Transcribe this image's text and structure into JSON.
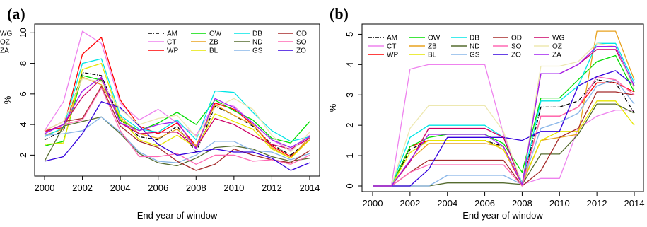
{
  "chart_data": [
    {
      "panel": "(a)",
      "type": "line",
      "xlabel": "End year of window",
      "ylabel": "%",
      "xlim": [
        2000,
        2014
      ],
      "ylim": [
        1,
        10.2
      ],
      "x_ticks": [
        "2000",
        "2002",
        "2004",
        "2006",
        "2008",
        "2010",
        "2012",
        "2014"
      ],
      "y_ticks": [
        "2",
        "4",
        "6",
        "8",
        "10"
      ],
      "legend_position": "top-right",
      "x": [
        2000,
        2001,
        2002,
        2003,
        2004,
        2005,
        2006,
        2007,
        2008,
        2009,
        2010,
        2011,
        2012,
        2013,
        2014
      ],
      "series": [
        {
          "name": "AM",
          "color": "#000000",
          "dash": "5,2,1,2",
          "values": [
            3.0,
            3.6,
            7.4,
            7.2,
            4.3,
            3.2,
            3.0,
            3.9,
            2.2,
            5.2,
            4.6,
            3.9,
            2.7,
            2.0,
            3.0
          ]
        },
        {
          "name": "CT",
          "color": "#ee82ee",
          "values": [
            3.6,
            5.5,
            10.1,
            9.3,
            5.4,
            4.3,
            5.0,
            4.1,
            3.3,
            5.4,
            5.2,
            4.1,
            3.0,
            2.3,
            3.3
          ]
        },
        {
          "name": "WP",
          "color": "#ff0000",
          "values": [
            3.6,
            3.8,
            8.6,
            9.7,
            5.6,
            3.9,
            3.4,
            4.1,
            2.6,
            5.4,
            5.0,
            4.0,
            2.6,
            1.9,
            3.0
          ]
        },
        {
          "name": "OW",
          "color": "#00dd00",
          "values": [
            2.6,
            2.9,
            7.2,
            6.9,
            4.3,
            3.6,
            4.1,
            4.8,
            4.0,
            5.6,
            4.9,
            4.3,
            3.1,
            2.8,
            4.2
          ]
        },
        {
          "name": "ZB",
          "color": "#e8a21e",
          "values": [
            3.3,
            3.7,
            7.1,
            6.6,
            4.5,
            3.4,
            3.1,
            3.7,
            2.6,
            5.3,
            4.6,
            4.0,
            2.5,
            1.8,
            3.2
          ]
        },
        {
          "name": "BL",
          "color": "#e6e600",
          "values": [
            2.7,
            2.8,
            7.6,
            8.0,
            4.4,
            3.0,
            2.6,
            3.3,
            2.5,
            4.7,
            4.2,
            3.7,
            2.4,
            1.8,
            3.0
          ]
        },
        {
          "name": "DB",
          "color": "#00e5e5",
          "values": [
            3.2,
            3.8,
            8.0,
            8.3,
            4.6,
            3.7,
            3.5,
            4.3,
            3.0,
            6.2,
            6.1,
            4.8,
            3.6,
            2.9,
            3.2
          ]
        },
        {
          "name": "ND",
          "color": "#556b2f",
          "values": [
            1.6,
            3.9,
            4.2,
            4.5,
            3.4,
            2.1,
            1.5,
            1.3,
            1.8,
            2.5,
            2.6,
            2.4,
            1.9,
            1.6,
            1.8
          ]
        },
        {
          "name": "GS",
          "color": "#87b5e8",
          "values": [
            3.3,
            3.4,
            3.6,
            4.5,
            3.5,
            2.2,
            1.6,
            1.5,
            2.0,
            2.9,
            2.9,
            2.3,
            2.2,
            1.7,
            2.1
          ]
        },
        {
          "name": "OD",
          "color": "#a52a2a",
          "values": [
            3.6,
            4.2,
            4.4,
            6.5,
            3.9,
            2.9,
            2.5,
            1.6,
            1.0,
            1.4,
            2.4,
            2.0,
            1.7,
            1.5,
            2.3
          ]
        },
        {
          "name": "SO",
          "color": "#ff69b4",
          "values": [
            3.5,
            4.0,
            4.3,
            6.4,
            3.6,
            1.9,
            1.9,
            2.1,
            1.4,
            2.0,
            2.0,
            1.6,
            1.7,
            1.4,
            2.0
          ]
        },
        {
          "name": "ZO",
          "color": "#3300dd",
          "values": [
            1.6,
            1.9,
            3.4,
            5.5,
            5.1,
            3.9,
            2.7,
            2.0,
            2.2,
            2.4,
            2.2,
            2.2,
            1.8,
            1.0,
            1.5
          ]
        },
        {
          "name": "WG",
          "color": "#cc0066",
          "values": [
            3.5,
            4.0,
            5.8,
            7.0,
            4.1,
            3.4,
            3.5,
            3.5,
            2.5,
            4.4,
            4.0,
            3.3,
            2.7,
            2.4,
            3.1
          ]
        },
        {
          "name": "OZ",
          "color": "#ede8b0",
          "values": [
            3.6,
            4.2,
            7.0,
            6.8,
            5.0,
            4.0,
            4.4,
            4.6,
            3.2,
            5.1,
            5.7,
            5.0,
            3.3,
            2.2,
            3.5
          ]
        },
        {
          "name": "ZA",
          "color": "#a020f0",
          "values": [
            3.4,
            4.0,
            6.2,
            7.1,
            4.1,
            3.6,
            4.0,
            4.2,
            2.4,
            5.7,
            5.1,
            4.1,
            3.0,
            2.5,
            3.2
          ]
        }
      ]
    },
    {
      "panel": "(b)",
      "type": "line",
      "xlabel": "End year of window",
      "ylabel": "%",
      "xlim": [
        2000,
        2014
      ],
      "ylim": [
        0,
        5.15
      ],
      "x_ticks": [
        "2000",
        "2002",
        "2004",
        "2006",
        "2008",
        "2010",
        "2012",
        "2014"
      ],
      "y_ticks": [
        "0",
        "1",
        "2",
        "3",
        "4",
        "5"
      ],
      "legend_position": "top-left",
      "x": [
        2000,
        2001,
        2002,
        2003,
        2004,
        2005,
        2006,
        2007,
        2008,
        2009,
        2010,
        2011,
        2012,
        2013,
        2014
      ],
      "series": [
        {
          "name": "AM",
          "color": "#000000",
          "dash": "5,2,1,2",
          "values": [
            0,
            0,
            1.2,
            1.5,
            1.5,
            1.5,
            1.5,
            1.3,
            0.05,
            2.6,
            2.6,
            2.8,
            3.5,
            3.4,
            2.4
          ]
        },
        {
          "name": "CT",
          "color": "#ee82ee",
          "values": [
            0,
            0,
            3.85,
            4.0,
            4.0,
            4.0,
            4.0,
            1.7,
            0.05,
            0.25,
            0.25,
            1.9,
            2.3,
            2.5,
            2.5
          ]
        },
        {
          "name": "WP",
          "color": "#ff0000",
          "values": [
            0,
            0,
            1.3,
            1.5,
            1.5,
            1.5,
            1.5,
            1.2,
            0.05,
            2.3,
            2.3,
            2.6,
            3.4,
            3.4,
            3.1
          ]
        },
        {
          "name": "OW",
          "color": "#00dd00",
          "values": [
            0,
            0,
            1.3,
            1.6,
            1.7,
            1.7,
            1.7,
            1.4,
            0.45,
            2.9,
            2.9,
            3.5,
            4.1,
            4.3,
            3.1
          ]
        },
        {
          "name": "ZB",
          "color": "#e8a21e",
          "values": [
            0,
            0,
            0.85,
            1.4,
            1.4,
            1.4,
            1.4,
            1.3,
            0.05,
            1.5,
            1.6,
            1.7,
            5.1,
            5.1,
            3.5
          ]
        },
        {
          "name": "BL",
          "color": "#e6e600",
          "values": [
            0,
            0,
            1.1,
            1.5,
            1.5,
            1.5,
            1.5,
            1.2,
            0.1,
            1.5,
            1.8,
            1.8,
            2.8,
            2.8,
            2.0
          ]
        },
        {
          "name": "DB",
          "color": "#00e5e5",
          "values": [
            0,
            0,
            1.6,
            2.0,
            2.0,
            2.0,
            2.0,
            1.6,
            0.1,
            2.8,
            2.8,
            3.3,
            4.7,
            4.7,
            3.4
          ]
        },
        {
          "name": "ND",
          "color": "#556b2f",
          "values": [
            0,
            0,
            0,
            0,
            0.1,
            0.1,
            0.1,
            0.1,
            0.05,
            1.05,
            1.05,
            1.7,
            2.7,
            2.7,
            2.4
          ]
        },
        {
          "name": "GS",
          "color": "#87b5e8",
          "values": [
            0,
            0,
            0,
            0,
            0.35,
            0.35,
            0.35,
            0.35,
            0.05,
            1.9,
            2.1,
            2.4,
            3.3,
            3.5,
            2.7
          ]
        },
        {
          "name": "OD",
          "color": "#a52a2a",
          "values": [
            0,
            0,
            0.45,
            0.85,
            0.85,
            0.85,
            0.85,
            0.85,
            0,
            0.5,
            1.6,
            1.9,
            3.1,
            3.1,
            3.0
          ]
        },
        {
          "name": "SO",
          "color": "#ff69b4",
          "values": [
            0,
            0,
            0.45,
            0.7,
            0.7,
            0.7,
            0.7,
            0.7,
            0,
            2.3,
            2.3,
            2.6,
            3.6,
            3.5,
            3.0
          ]
        },
        {
          "name": "ZO",
          "color": "#3300dd",
          "values": [
            0,
            0,
            0,
            0.55,
            1.6,
            1.6,
            1.6,
            1.6,
            1.5,
            1.8,
            1.8,
            3.3,
            3.6,
            3.8,
            3.3
          ]
        },
        {
          "name": "WG",
          "color": "#cc0066",
          "values": [
            0,
            0,
            0.8,
            1.9,
            1.9,
            1.9,
            1.9,
            1.6,
            0.05,
            3.7,
            3.7,
            4.0,
            4.5,
            4.5,
            3.3
          ]
        },
        {
          "name": "OZ",
          "color": "#ede8b0",
          "values": [
            0,
            0,
            1.9,
            2.65,
            2.65,
            2.65,
            2.65,
            1.8,
            0.05,
            3.95,
            3.95,
            4.1,
            4.7,
            4.6,
            3.2
          ]
        },
        {
          "name": "ZA",
          "color": "#a020f0",
          "values": [
            0,
            0,
            0.85,
            1.7,
            1.7,
            1.7,
            1.7,
            1.3,
            0.05,
            3.7,
            3.7,
            4.0,
            4.6,
            4.6,
            3.3
          ]
        }
      ]
    }
  ]
}
